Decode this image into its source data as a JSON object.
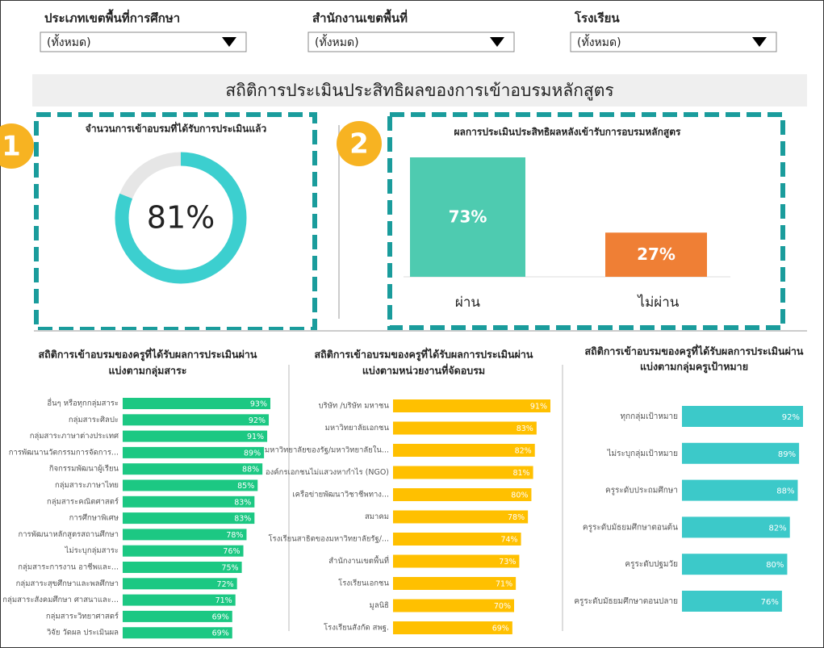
{
  "filters": [
    {
      "label": "ประเภทเขตพื้นที่การศึกษา",
      "value": "(ทั้งหมด)"
    },
    {
      "label": "สำนักงานเขตพื้นที่",
      "value": "(ทั้งหมด)"
    },
    {
      "label": "โรงเรียน",
      "value": "(ทั้งหมด)"
    }
  ],
  "title": "สถิติการประเมินประสิทธิผลของการเข้าอบรมหลักสูตร",
  "badges": [
    "1",
    "2"
  ],
  "chart_data": [
    {
      "type": "donut",
      "title": "จำนวนการเข้าอบรมที่ได้รับการประเมินแล้ว",
      "values": [
        81
      ],
      "value_labels": [
        "81%"
      ],
      "color": "#3ccfcf",
      "track_color": "#e6e6e6"
    },
    {
      "type": "bar",
      "title": "ผลการประเมินประสิทธิผลหลังเข้ารับการอบรมหลักสูตร",
      "categories": [
        "ผ่าน",
        "ไม่ผ่าน"
      ],
      "values": [
        73,
        27
      ],
      "value_labels": [
        "73%",
        "27%"
      ],
      "colors": [
        "#4ecbb0",
        "#ef7f35"
      ]
    },
    {
      "type": "hbar",
      "title": "สถิติการเข้าอบรมของครูที่ได้รับผลการประเมินผ่าน",
      "subtitle": "แบ่งตามกลุ่มสาระ",
      "color": "#1cc883",
      "categories": [
        "อื่นๆ หรือทุกกลุ่มสาระ",
        "กลุ่มสาระศิลปะ",
        "กลุ่มสาระภาษาต่างประเทศ",
        "การพัฒนานวัตกรรมการจัดการ...",
        "กิจกรรมพัฒนาผู้เรียน",
        "กลุ่มสาระภาษาไทย",
        "กลุ่มสาระคณิตศาสตร์",
        "การศึกษาพิเศษ",
        "การพัฒนาหลักสูตรสถานศึกษา",
        "ไม่ระบุกลุ่มสาระ",
        "กลุ่มสาระการงาน อาชีพและ...",
        "กลุ่มสาระสุขศึกษาและพลศึกษา",
        "กลุ่มสาระสังคมศึกษา ศาสนาและ...",
        "กลุ่มสาระวิทยาศาสตร์",
        "วิจัย วัดผล ประเมินผล"
      ],
      "values": [
        93,
        92,
        91,
        89,
        88,
        85,
        83,
        83,
        78,
        76,
        75,
        72,
        71,
        69,
        69
      ],
      "value_labels": [
        "93%",
        "92%",
        "91%",
        "89%",
        "88%",
        "85%",
        "83%",
        "83%",
        "78%",
        "76%",
        "75%",
        "72%",
        "71%",
        "69%",
        "69%"
      ]
    },
    {
      "type": "hbar",
      "title": "สถิติการเข้าอบรมของครูที่ได้รับผลการประเมินผ่าน",
      "subtitle": "แบ่งตามหน่วยงานที่จัดอบรม",
      "color": "#ffc000",
      "categories": [
        "บริษัท /บริษัท มหาชน",
        "มหาวิทยาลัยเอกชน",
        "มหาวิทยาลัยของรัฐ/มหาวิทยาลัยใน...",
        "องค์กรเอกชนไม่แสวงหากำไร (NGO)",
        "เครือข่ายพัฒนาวิชาชีพทาง...",
        "สมาคม",
        "โรงเรียนสาธิตของมหาวิทยาลัยรัฐ/...",
        "สำนักงานเขตพื้นที่",
        "โรงเรียนเอกชน",
        "มูลนิธิ",
        "โรงเรียนสังกัด สพฐ."
      ],
      "values": [
        91,
        83,
        82,
        81,
        80,
        78,
        74,
        73,
        71,
        70,
        69
      ],
      "value_labels": [
        "91%",
        "83%",
        "82%",
        "81%",
        "80%",
        "78%",
        "74%",
        "73%",
        "71%",
        "70%",
        "69%"
      ]
    },
    {
      "type": "hbar",
      "title": "สถิติการเข้าอบรมของครูที่ได้รับผลการประเมินผ่าน",
      "subtitle": "แบ่งตามกลุ่มครูเป้าหมาย",
      "color": "#3cc9c9",
      "categories": [
        "ทุกกลุ่มเป้าหมาย",
        "ไม่ระบุกลุ่มเป้าหมาย",
        "ครูระดับประถมศึกษา",
        "ครูระดับมัธยมศึกษาตอนต้น",
        "ครูระดับปฐมวัย",
        "ครูระดับมัธยมศึกษาตอนปลาย"
      ],
      "values": [
        92,
        89,
        88,
        82,
        80,
        76
      ],
      "value_labels": [
        "92%",
        "89%",
        "88%",
        "82%",
        "80%",
        "76%"
      ]
    }
  ]
}
